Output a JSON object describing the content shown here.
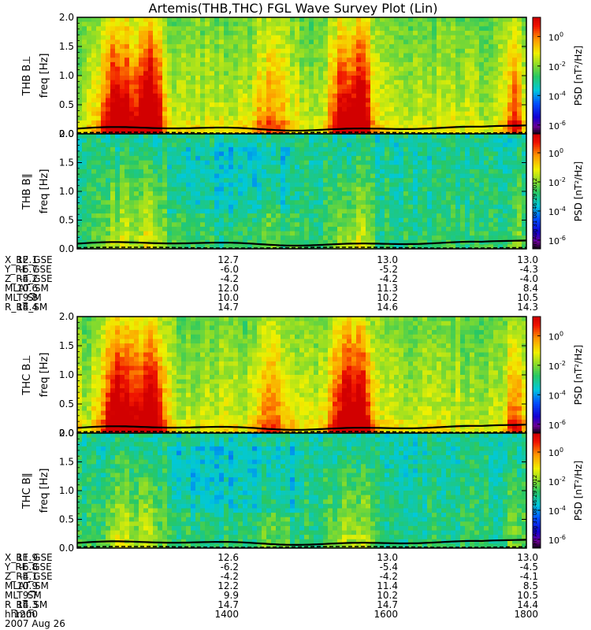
{
  "chart_data": {
    "type": "heatmap",
    "title": "Artemis(THB,THC) FGL Wave Survey Plot (Lin)",
    "date_label": "2007 Aug 26",
    "stamp": "Fri Aug 31 08:46:29 2012",
    "x_range_hhmm": [
      1200,
      1800
    ],
    "colorbar": {
      "label": "PSD [nT²/Hz]",
      "scale": "log",
      "range_log10": [
        -6.6,
        1.3
      ],
      "tick_values": [
        "10^0",
        "10^-2",
        "10^-4",
        "10^-6"
      ],
      "tick_exponents": [
        0,
        -2,
        -4,
        -6
      ]
    },
    "panels": [
      {
        "probe_label": "THB B⊥",
        "ylabel": "freq [Hz]",
        "ylim": [
          0.0,
          2.0
        ],
        "yticks": [
          "2.0",
          "1.5",
          "1.0",
          "0.5",
          "0.0"
        ]
      },
      {
        "probe_label": "THB B∥",
        "ylabel": "freq [Hz]",
        "ylim": [
          0.0,
          2.0
        ],
        "yticks": [
          "2.0",
          "1.5",
          "1.0",
          "0.5",
          "0.0"
        ]
      },
      {
        "probe_label": "THC B⊥",
        "ylabel": "freq [Hz]",
        "ylim": [
          0.0,
          2.0
        ],
        "yticks": [
          "2.0",
          "1.5",
          "1.0",
          "0.5",
          "0.0"
        ]
      },
      {
        "probe_label": "THC B∥",
        "ylabel": "freq [Hz]",
        "ylim": [
          0.0,
          2.0
        ],
        "yticks": [
          "2.0",
          "1.5",
          "1.0",
          "0.5",
          "0.0"
        ]
      }
    ],
    "ephemeris_thb": {
      "labels": [
        "X_RE_GSE",
        "Y_RE_GSE",
        "Z_RE_GSE",
        "MLAT_SM",
        "MLT_SM",
        "R_RE_SM"
      ],
      "rows": [
        [
          "12.1",
          "12.7",
          "13.0",
          "13.0"
        ],
        [
          "-6.7",
          "-6.0",
          "-5.2",
          "-4.3"
        ],
        [
          "-4.2",
          "-4.2",
          "-4.2",
          "-4.0"
        ],
        [
          "10.6",
          "12.0",
          "11.3",
          "8.4"
        ],
        [
          "9.8",
          "10.0",
          "10.2",
          "10.5"
        ],
        [
          "14.4",
          "14.7",
          "14.6",
          "14.3"
        ]
      ]
    },
    "ephemeris_thc": {
      "labels": [
        "X_RE_GSE",
        "Y_RE_GSE",
        "Z_RE_GSE",
        "MLAT_SM",
        "MLT_SM",
        "R_RE_SM",
        "hhmm"
      ],
      "rows": [
        [
          "11.9",
          "12.6",
          "13.0",
          "13.0"
        ],
        [
          "-6.8",
          "-6.2",
          "-5.4",
          "-4.5"
        ],
        [
          "-4.1",
          "-4.2",
          "-4.2",
          "-4.1"
        ],
        [
          "10.9",
          "12.2",
          "11.4",
          "8.5"
        ],
        [
          "9.7",
          "9.9",
          "10.2",
          "10.5"
        ],
        [
          "14.3",
          "14.7",
          "14.7",
          "14.4"
        ],
        [
          "1200",
          "1400",
          "1600",
          "1800"
        ]
      ]
    }
  }
}
